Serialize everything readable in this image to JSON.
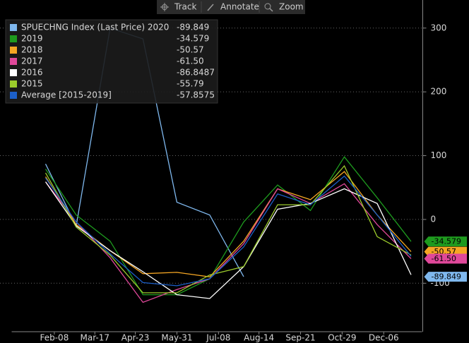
{
  "toolbar": [
    "Track",
    "Annotate",
    "Zoom"
  ],
  "chart_data": {
    "type": "line",
    "x": [
      31,
      59,
      90,
      120,
      151,
      181,
      212,
      243,
      273,
      304,
      334,
      365
    ],
    "xlim": [
      0,
      375
    ],
    "xticks": [
      {
        "value": 39,
        "label": "Feb-08"
      },
      {
        "value": 76,
        "label": "Mar-17"
      },
      {
        "value": 113,
        "label": "Apr-23"
      },
      {
        "value": 151,
        "label": "May-31"
      },
      {
        "value": 189,
        "label": "Jul-08"
      },
      {
        "value": 226,
        "label": "Aug-14"
      },
      {
        "value": 264,
        "label": "Sep-21"
      },
      {
        "value": 302,
        "label": "Oct-29"
      },
      {
        "value": 340,
        "label": "Dec-06"
      }
    ],
    "ylim": [
      -176,
      344
    ],
    "yticks": [
      -100,
      0,
      100,
      200,
      300
    ],
    "grid": true,
    "legend": "top-left",
    "series": [
      {
        "name": "SPUECHNG Index (Last Price) 2020",
        "color": "#7fb8ee",
        "tag": true,
        "values": [
          87,
          -10,
          300,
          283,
          27,
          7,
          -89.849,
          null,
          null,
          null,
          null,
          null
        ]
      },
      {
        "name": "2019",
        "color": "#1e9a1e",
        "tag": true,
        "values": [
          79,
          7,
          -34,
          -118,
          -118,
          -93,
          -4,
          54,
          14,
          98,
          34,
          -34.579
        ]
      },
      {
        "name": "2018",
        "color": "#f5a623",
        "tag": true,
        "values": [
          67,
          -8,
          -49,
          -85,
          -83,
          -90,
          -34,
          48,
          31,
          75,
          7,
          -50.57
        ]
      },
      {
        "name": "2017",
        "color": "#e0489a",
        "tag": true,
        "values": [
          59,
          -4,
          -60,
          -130,
          -110,
          -93,
          -38,
          48,
          25,
          56,
          -8,
          -61.5
        ],
        "value_labels": [
          null,
          null,
          null,
          null,
          null,
          null,
          null,
          null,
          null,
          null,
          null,
          "-61.50"
        ]
      },
      {
        "name": "2016",
        "color": "#ffffff",
        "tag": false,
        "values": [
          59,
          -10,
          -49,
          -82,
          -118,
          -124,
          -74,
          16,
          25,
          48,
          25,
          -86.8487
        ]
      },
      {
        "name": "2015",
        "color": "#9ccc2c",
        "tag": false,
        "values": [
          73,
          -12,
          -56,
          -115,
          -115,
          -87,
          -74,
          23,
          23,
          84,
          -27,
          -55.79
        ]
      },
      {
        "name": "Average [2015-2019]",
        "color": "#1c5fc8",
        "tag": false,
        "values": [
          65,
          -4,
          -54,
          -99,
          -104,
          -93,
          -43,
          40,
          23,
          68,
          7,
          -57.8575
        ]
      }
    ]
  }
}
